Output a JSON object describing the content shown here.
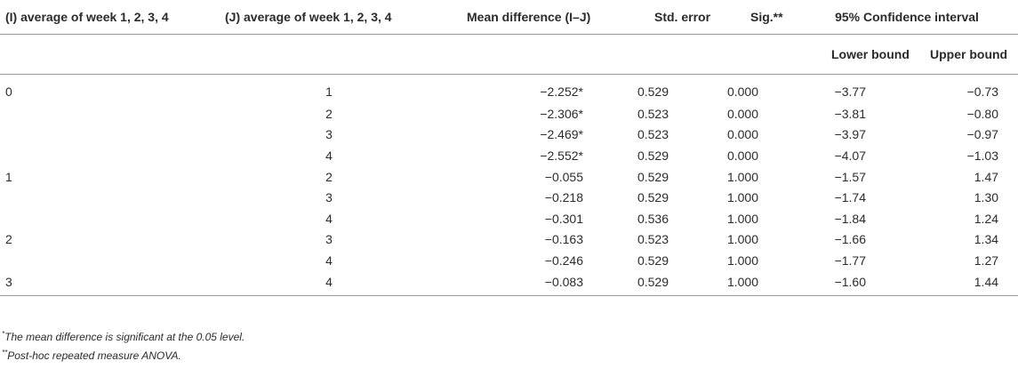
{
  "table": {
    "headers": {
      "col_i": "(I) average of week 1, 2, 3, 4",
      "col_j": "(J) average of week 1, 2, 3, 4",
      "mean_diff": "Mean difference (I–J)",
      "std_error": "Std. error",
      "sig": "Sig.**",
      "ci": "95% Confidence interval",
      "lower": "Lower bound",
      "upper": "Upper bound"
    },
    "rows": [
      {
        "i": "0",
        "j": "1",
        "md": "−2.252*",
        "se": "0.529",
        "sig": "0.000",
        "lb": "−3.77",
        "ub": "−0.73"
      },
      {
        "i": "",
        "j": "2",
        "md": "−2.306*",
        "se": "0.523",
        "sig": "0.000",
        "lb": "−3.81",
        "ub": "−0.80"
      },
      {
        "i": "",
        "j": "3",
        "md": "−2.469*",
        "se": "0.523",
        "sig": "0.000",
        "lb": "−3.97",
        "ub": "−0.97"
      },
      {
        "i": "",
        "j": "4",
        "md": "−2.552*",
        "se": "0.529",
        "sig": "0.000",
        "lb": "−4.07",
        "ub": "−1.03"
      },
      {
        "i": "1",
        "j": "2",
        "md": "−0.055",
        "se": "0.529",
        "sig": "1.000",
        "lb": "−1.57",
        "ub": "1.47"
      },
      {
        "i": "",
        "j": "3",
        "md": "−0.218",
        "se": "0.529",
        "sig": "1.000",
        "lb": "−1.74",
        "ub": "1.30"
      },
      {
        "i": "",
        "j": "4",
        "md": "−0.301",
        "se": "0.536",
        "sig": "1.000",
        "lb": "−1.84",
        "ub": "1.24"
      },
      {
        "i": "2",
        "j": "3",
        "md": "−0.163",
        "se": "0.523",
        "sig": "1.000",
        "lb": "−1.66",
        "ub": "1.34"
      },
      {
        "i": "",
        "j": "4",
        "md": "−0.246",
        "se": "0.529",
        "sig": "1.000",
        "lb": "−1.77",
        "ub": "1.27"
      },
      {
        "i": "3",
        "j": "4",
        "md": "−0.083",
        "se": "0.529",
        "sig": "1.000",
        "lb": "−1.60",
        "ub": "1.44"
      }
    ]
  },
  "footnotes": {
    "note1_mark": "*",
    "note1_text": "The mean difference is significant at the 0.05 level.",
    "note2_mark": "**",
    "note2_text": "Post-hoc repeated measure ANOVA."
  }
}
